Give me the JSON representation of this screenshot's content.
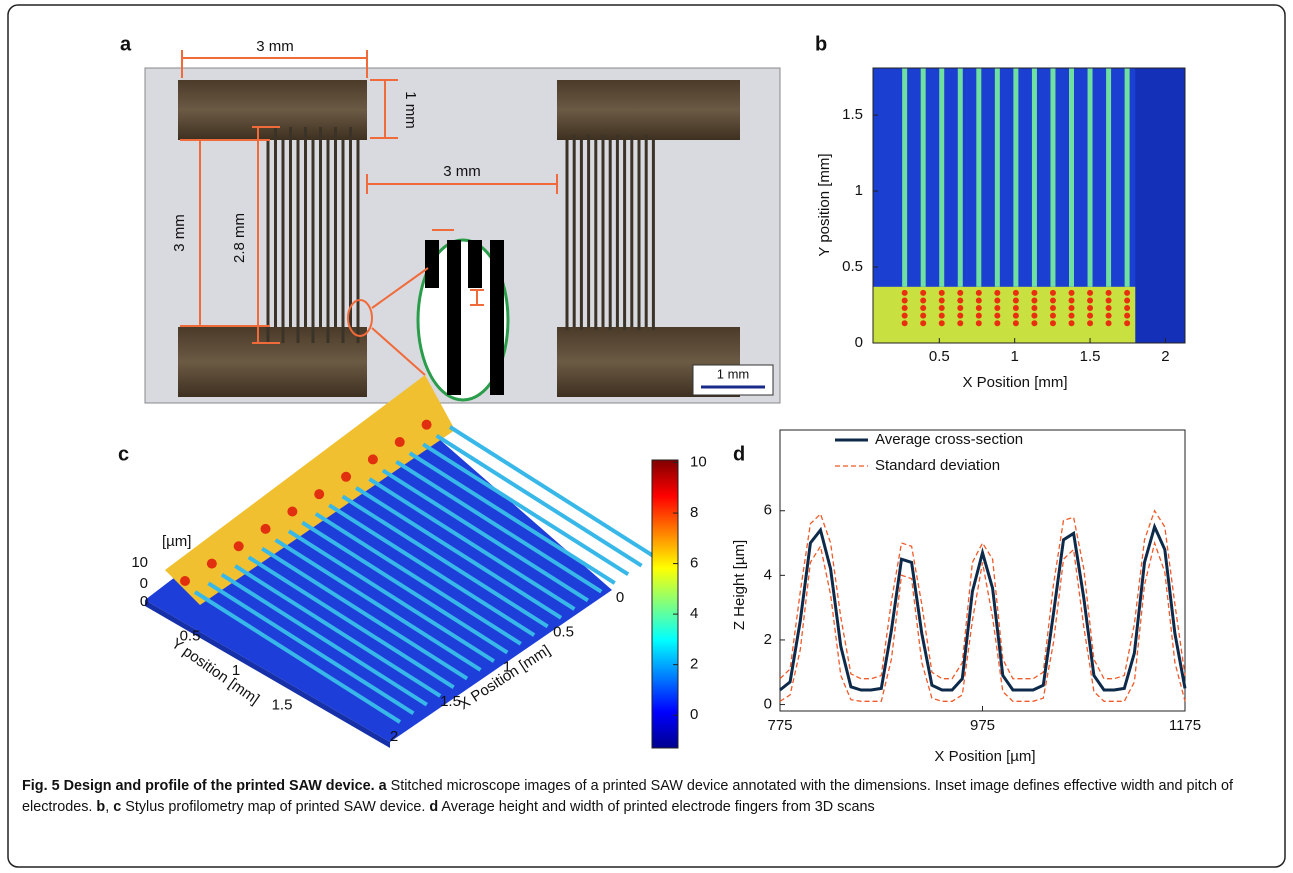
{
  "panel_a": {
    "letter": "a",
    "dim_top": "3 mm",
    "dim_pad": "1 mm",
    "dim_gap": "3 mm",
    "dim_height": "3 mm",
    "dim_finger": "2.8 mm",
    "scale_bar": "1 mm"
  },
  "panel_b": {
    "letter": "b",
    "xlabel": "X Position [mm]",
    "ylabel": "Y position [mm]",
    "xlim": [
      0.06,
      2.13
    ],
    "ylim": [
      0,
      1.81
    ],
    "xticks": [
      0.5,
      1,
      1.5,
      2
    ],
    "yticks": [
      0,
      0.5,
      1,
      1.5
    ]
  },
  "panel_c": {
    "letter": "c",
    "zunit": "[µm]",
    "xlabel": "X Position [mm]",
    "ylabel": "Y position [mm]",
    "xticks": [
      0,
      0.5,
      1,
      1.5,
      2
    ],
    "yticks": [
      0,
      0.5,
      1,
      1.5
    ],
    "zticks": [
      0,
      10
    ],
    "clim": [
      -1.3,
      10.1
    ],
    "cticks": [
      0,
      2,
      4,
      6,
      8,
      10
    ]
  },
  "chart_data": {
    "type": "line",
    "letter": "d",
    "xlabel": "X Position [µm]",
    "ylabel": "Z Height [µm]",
    "x": [
      775,
      785,
      795,
      805,
      815,
      825,
      835,
      845,
      855,
      865,
      875,
      885,
      895,
      905,
      915,
      925,
      935,
      945,
      955,
      965,
      975,
      985,
      995,
      1005,
      1015,
      1025,
      1035,
      1045,
      1055,
      1065,
      1075,
      1085,
      1095,
      1105,
      1115,
      1125,
      1135,
      1145,
      1155,
      1165,
      1175
    ],
    "series": [
      {
        "name": "Average cross-section",
        "color": "#0d2a4a",
        "values": [
          0.45,
          0.7,
          2.6,
          5.0,
          5.4,
          4.2,
          1.8,
          0.55,
          0.45,
          0.45,
          0.5,
          2.3,
          4.5,
          4.4,
          2.2,
          0.6,
          0.45,
          0.45,
          0.8,
          3.5,
          4.7,
          3.6,
          0.9,
          0.45,
          0.45,
          0.45,
          0.6,
          2.8,
          5.1,
          5.3,
          3.3,
          0.9,
          0.45,
          0.45,
          0.5,
          1.6,
          4.4,
          5.5,
          4.8,
          2.2,
          0.5
        ]
      },
      {
        "name": "Standard deviation",
        "color": "#f05a28",
        "values": [
          0.35,
          0.4,
          0.9,
          0.6,
          0.5,
          0.8,
          0.9,
          0.4,
          0.35,
          0.35,
          0.4,
          0.9,
          0.5,
          0.5,
          0.9,
          0.4,
          0.35,
          0.35,
          0.5,
          0.9,
          0.3,
          0.9,
          0.5,
          0.35,
          0.35,
          0.35,
          0.4,
          0.9,
          0.6,
          0.5,
          0.9,
          0.5,
          0.35,
          0.35,
          0.4,
          0.9,
          0.7,
          0.5,
          0.7,
          0.9,
          0.4
        ]
      }
    ],
    "xlim": [
      775,
      1175
    ],
    "ylim": [
      -0.2,
      8.5
    ],
    "xticks": [
      775,
      975,
      1175
    ],
    "yticks": [
      0,
      2,
      4,
      6
    ]
  },
  "caption": [
    {
      "text": "Fig. 5 Design and profile of the printed SAW device.",
      "bold": true
    },
    {
      "text": " a",
      "bold": true
    },
    {
      "text": " Stitched microscope images of a printed SAW device annotated with the dimensions. Inset image defines effective width and pitch of electrodes. ",
      "bold": false
    },
    {
      "text": "b",
      "bold": true
    },
    {
      "text": ", ",
      "bold": false
    },
    {
      "text": "c",
      "bold": true
    },
    {
      "text": " Stylus profilometry map of printed SAW device. ",
      "bold": false
    },
    {
      "text": "d",
      "bold": true
    },
    {
      "text": " Average height and width of printed electrode fingers from 3D scans",
      "bold": false
    }
  ]
}
